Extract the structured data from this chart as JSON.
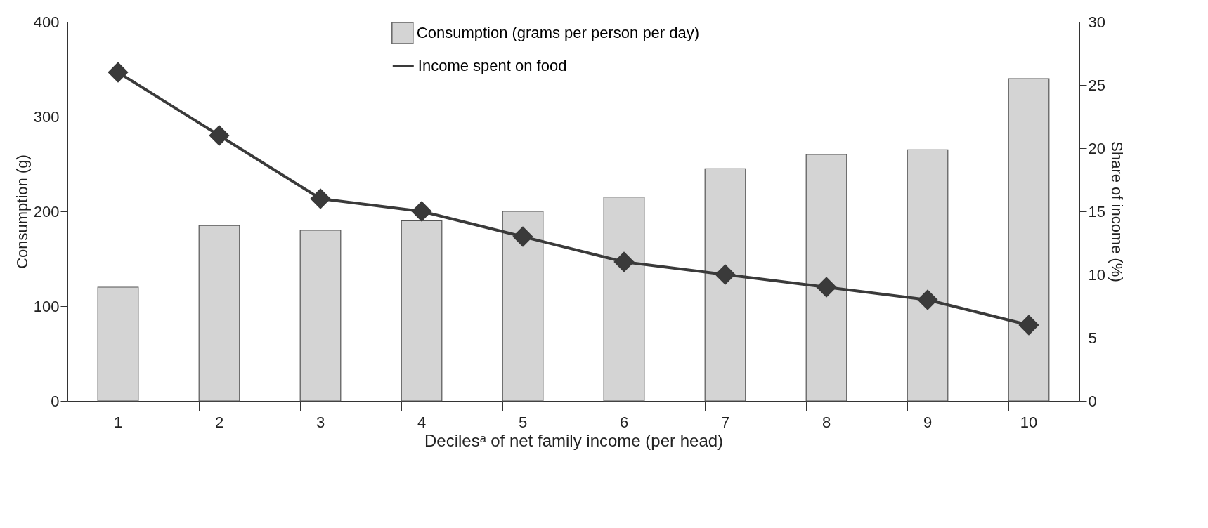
{
  "chart_data": {
    "type": "bar",
    "xlabel": "Decilesᵃ of net family income (per head)",
    "ylabel": "Consumption (g)",
    "y2label": "Share of income (%)",
    "categories": [
      "1",
      "2",
      "3",
      "4",
      "5",
      "6",
      "7",
      "8",
      "9",
      "10"
    ],
    "series": [
      {
        "name": "Consumption (grams per person per day)",
        "color": "#d4d4d4",
        "values": [
          120,
          185,
          180,
          190,
          200,
          215,
          245,
          260,
          265,
          340
        ]
      },
      {
        "name": "Income spent on food",
        "type": "line",
        "axis": "y2",
        "color": "#3a3a3a",
        "marker": "diamond",
        "values": [
          26,
          21,
          16,
          15,
          13,
          11,
          10,
          9,
          8,
          6
        ]
      }
    ],
    "ylim": [
      0,
      400
    ],
    "yticks": [
      0,
      100,
      200,
      300,
      400
    ],
    "y2lim": [
      0,
      30
    ],
    "y2ticks": [
      0,
      5,
      10,
      15,
      20,
      25,
      30
    ],
    "grid": false,
    "legend": "top"
  }
}
